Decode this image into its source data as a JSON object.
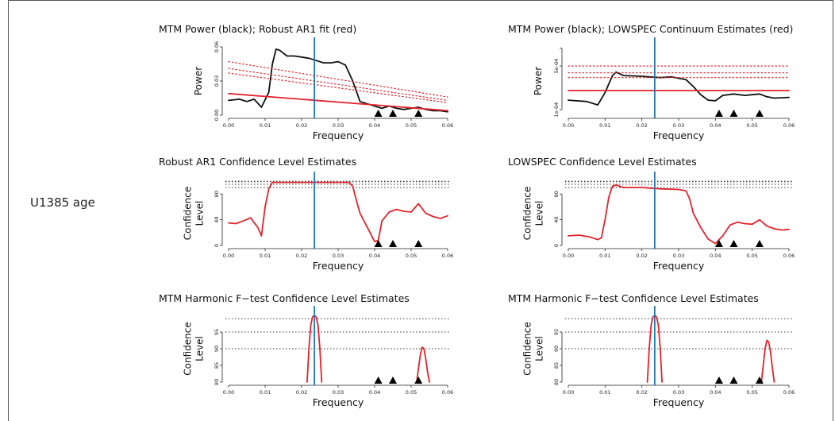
{
  "label": "U1385 age",
  "colors": {
    "power": "#111111",
    "model": "#e0242e",
    "cl": "#e0242e",
    "band": "#1f77c4",
    "ref": "#333333"
  },
  "chart_data": [
    {
      "id": "p1",
      "type": "line",
      "title": "MTM Power (black); Robust AR1 fit (red)",
      "xlabel": "Frequency",
      "ylabel": [
        "Power"
      ],
      "xlim": [
        0,
        0.06
      ],
      "ylim": [
        0,
        0.06
      ],
      "xticks": [
        "0.00",
        "0.01",
        "0.02",
        "0.03",
        "0.04",
        "0.05",
        "0.06"
      ],
      "yticks": [
        {
          "v": 0,
          "t": "0.00"
        },
        {
          "v": 0.03,
          "t": "0.03"
        },
        {
          "v": 0.06,
          "t": "0.06"
        }
      ],
      "vline": 0.0235,
      "triangles": [
        0.041,
        0.045,
        0.052
      ],
      "ref_lines": [],
      "series": [
        {
          "role": "power",
          "style": "solid",
          "x": [
            0,
            0.003,
            0.005,
            0.007,
            0.009,
            0.011,
            0.012,
            0.013,
            0.014,
            0.016,
            0.018,
            0.02,
            0.022,
            0.024,
            0.026,
            0.028,
            0.03,
            0.032,
            0.034,
            0.036,
            0.038,
            0.04,
            0.042,
            0.044,
            0.046,
            0.048,
            0.05,
            0.052,
            0.054,
            0.056,
            0.058,
            0.06
          ],
          "y": [
            0.013,
            0.014,
            0.012,
            0.014,
            0.007,
            0.02,
            0.045,
            0.058,
            0.057,
            0.052,
            0.052,
            0.051,
            0.05,
            0.048,
            0.046,
            0.046,
            0.047,
            0.044,
            0.03,
            0.012,
            0.01,
            0.008,
            0.006,
            0.008,
            0.006,
            0.005,
            0.006,
            0.007,
            0.005,
            0.004,
            0.004,
            0.003
          ]
        },
        {
          "role": "model",
          "style": "solid",
          "x": [
            0,
            0.06
          ],
          "y": [
            0.019,
            0.004
          ]
        },
        {
          "role": "model",
          "style": "dotted",
          "x": [
            0,
            0.06
          ],
          "y": [
            0.047,
            0.016
          ]
        },
        {
          "role": "model",
          "style": "dotted",
          "x": [
            0,
            0.06
          ],
          "y": [
            0.041,
            0.013
          ]
        },
        {
          "role": "model",
          "style": "dotted",
          "x": [
            0,
            0.06
          ],
          "y": [
            0.037,
            0.011
          ]
        }
      ]
    },
    {
      "id": "p2",
      "type": "line",
      "title": "MTM Power (black); LOWSPEC Continuum Estimates (red)",
      "xlabel": "Frequency",
      "ylabel": [
        "Power"
      ],
      "xlim": [
        0,
        0.06
      ],
      "ylim": [
        0,
        1
      ],
      "xticks": [
        "0.00",
        "0.01",
        "0.02",
        "0.03",
        "0.04",
        "0.05",
        "0.06"
      ],
      "yticks": [
        {
          "v": 0.08,
          "t": "1e-04"
        },
        {
          "v": 0.72,
          "t": "5e-04"
        },
        {
          "v": 0.98,
          "t": ""
        }
      ],
      "vline": 0.0235,
      "triangles": [
        0.041,
        0.045,
        0.052
      ],
      "ref_lines": [],
      "series": [
        {
          "role": "power",
          "style": "solid",
          "x": [
            0,
            0.005,
            0.008,
            0.01,
            0.012,
            0.013,
            0.015,
            0.02,
            0.022,
            0.025,
            0.028,
            0.032,
            0.034,
            0.036,
            0.038,
            0.04,
            0.042,
            0.045,
            0.048,
            0.05,
            0.052,
            0.054,
            0.056,
            0.06
          ],
          "y": [
            0.22,
            0.2,
            0.15,
            0.33,
            0.58,
            0.63,
            0.58,
            0.57,
            0.56,
            0.55,
            0.56,
            0.52,
            0.42,
            0.3,
            0.22,
            0.21,
            0.29,
            0.31,
            0.29,
            0.3,
            0.31,
            0.27,
            0.25,
            0.26
          ]
        },
        {
          "role": "model",
          "style": "solid",
          "x": [
            0,
            0.06
          ],
          "y": [
            0.36,
            0.36
          ]
        },
        {
          "role": "model",
          "style": "dotted",
          "x": [
            0,
            0.06
          ],
          "y": [
            0.72,
            0.72
          ]
        },
        {
          "role": "model",
          "style": "dotted",
          "x": [
            0,
            0.06
          ],
          "y": [
            0.62,
            0.62
          ]
        },
        {
          "role": "model",
          "style": "dotted",
          "x": [
            0,
            0.06
          ],
          "y": [
            0.55,
            0.55
          ]
        }
      ]
    },
    {
      "id": "p3",
      "type": "line",
      "title": "Robust AR1 Confidence Level Estimates",
      "xlabel": "Frequency",
      "ylabel": [
        "Confidence",
        "Level"
      ],
      "xlim": [
        0,
        0.06
      ],
      "ylim": [
        0,
        100
      ],
      "xticks": [
        "0.00",
        "0.01",
        "0.02",
        "0.03",
        "0.04",
        "0.05",
        "0.06"
      ],
      "yticks": [
        {
          "v": 0,
          "t": "0"
        },
        {
          "v": 40,
          "t": "40"
        },
        {
          "v": 80,
          "t": "80"
        }
      ],
      "vline": 0.0235,
      "triangles": [
        0.041,
        0.045,
        0.052
      ],
      "ref_lines": [
        90,
        95,
        99,
        99.9
      ],
      "series": [
        {
          "role": "cl",
          "style": "solid",
          "x": [
            0,
            0.002,
            0.004,
            0.006,
            0.008,
            0.009,
            0.01,
            0.011,
            0.012,
            0.015,
            0.02,
            0.025,
            0.03,
            0.033,
            0.034,
            0.035,
            0.036,
            0.038,
            0.04,
            0.041,
            0.042,
            0.044,
            0.046,
            0.048,
            0.05,
            0.052,
            0.054,
            0.056,
            0.058,
            0.06
          ],
          "y": [
            35,
            34,
            38,
            43,
            28,
            15,
            60,
            88,
            98,
            98,
            98,
            98,
            98,
            98,
            92,
            70,
            50,
            28,
            6,
            8,
            38,
            52,
            56,
            53,
            52,
            65,
            50,
            45,
            42,
            46
          ]
        }
      ]
    },
    {
      "id": "p4",
      "type": "line",
      "title": "LOWSPEC Confidence Level Estimates",
      "xlabel": "Frequency",
      "ylabel": [
        "Confidence",
        "Level"
      ],
      "xlim": [
        0,
        0.06
      ],
      "ylim": [
        0,
        100
      ],
      "xticks": [
        "0.00",
        "0.01",
        "0.02",
        "0.03",
        "0.04",
        "0.05",
        "0.06"
      ],
      "yticks": [
        {
          "v": 0,
          "t": "0"
        },
        {
          "v": 40,
          "t": "40"
        },
        {
          "v": 80,
          "t": "80"
        }
      ],
      "vline": 0.0235,
      "triangles": [
        0.041,
        0.045,
        0.052
      ],
      "ref_lines": [
        90,
        95,
        99,
        99.9
      ],
      "series": [
        {
          "role": "cl",
          "style": "solid",
          "x": [
            0,
            0.003,
            0.006,
            0.008,
            0.009,
            0.01,
            0.011,
            0.012,
            0.013,
            0.015,
            0.02,
            0.025,
            0.03,
            0.032,
            0.033,
            0.034,
            0.036,
            0.038,
            0.04,
            0.042,
            0.044,
            0.046,
            0.048,
            0.05,
            0.052,
            0.054,
            0.056,
            0.058,
            0.06
          ],
          "y": [
            15,
            16,
            13,
            9,
            12,
            40,
            75,
            92,
            94,
            90,
            90,
            88,
            87,
            85,
            72,
            50,
            28,
            10,
            3,
            15,
            32,
            36,
            34,
            33,
            40,
            30,
            26,
            24,
            25
          ]
        }
      ]
    },
    {
      "id": "p5",
      "type": "line",
      "title": "MTM Harmonic F−test Confidence Level Estimates",
      "xlabel": "Frequency",
      "ylabel": [
        "Confidence",
        "Level"
      ],
      "xlim": [
        0,
        0.06
      ],
      "ylim": [
        80,
        100
      ],
      "xticks": [
        "0.00",
        "0.01",
        "0.02",
        "0.03",
        "0.04",
        "0.05",
        "0.06"
      ],
      "yticks": [
        {
          "v": 80,
          "t": "80"
        },
        {
          "v": 85,
          "t": "85"
        },
        {
          "v": 90,
          "t": "90"
        },
        {
          "v": 95,
          "t": "95"
        }
      ],
      "vline": 0.0235,
      "triangles": [
        0.041,
        0.045,
        0.052
      ],
      "ref_lines": [
        90,
        95,
        99
      ],
      "series": [
        {
          "role": "cl",
          "style": "solid",
          "x": [
            0.0215,
            0.022,
            0.0225,
            0.023,
            0.0235,
            0.024,
            0.0245,
            0.025,
            0.0255
          ],
          "y": [
            80,
            90,
            97,
            99.5,
            100,
            99.5,
            97,
            90,
            80
          ]
        },
        {
          "role": "cl",
          "style": "solid",
          "x": [
            0.0515,
            0.052,
            0.0525,
            0.053,
            0.0535,
            0.054,
            0.0545,
            0.055
          ],
          "y": [
            80,
            84,
            88,
            90.5,
            90,
            87,
            83,
            80
          ]
        }
      ]
    },
    {
      "id": "p6",
      "type": "line",
      "title": "MTM Harmonic F−test Confidence Level Estimates",
      "xlabel": "Frequency",
      "ylabel": [
        "Confidence",
        "Level"
      ],
      "xlim": [
        0,
        0.06
      ],
      "ylim": [
        80,
        100
      ],
      "xticks": [
        "0.00",
        "0.01",
        "0.02",
        "0.03",
        "0.04",
        "0.05",
        "0.06"
      ],
      "yticks": [
        {
          "v": 80,
          "t": "80"
        },
        {
          "v": 85,
          "t": "85"
        },
        {
          "v": 90,
          "t": "90"
        },
        {
          "v": 95,
          "t": "95"
        }
      ],
      "vline": 0.0235,
      "triangles": [
        0.041,
        0.045,
        0.052
      ],
      "ref_lines": [
        90,
        95,
        99
      ],
      "series": [
        {
          "role": "cl",
          "style": "solid",
          "x": [
            0.0215,
            0.022,
            0.0225,
            0.023,
            0.0235,
            0.024,
            0.0245,
            0.025,
            0.0255
          ],
          "y": [
            80,
            90,
            97,
            99.5,
            100,
            99.5,
            97,
            90,
            80
          ]
        },
        {
          "role": "cl",
          "style": "solid",
          "x": [
            0.0525,
            0.053,
            0.0535,
            0.054,
            0.0545,
            0.055,
            0.0555,
            0.056
          ],
          "y": [
            80,
            85,
            90,
            92.5,
            92,
            89,
            84,
            80
          ]
        }
      ]
    }
  ]
}
